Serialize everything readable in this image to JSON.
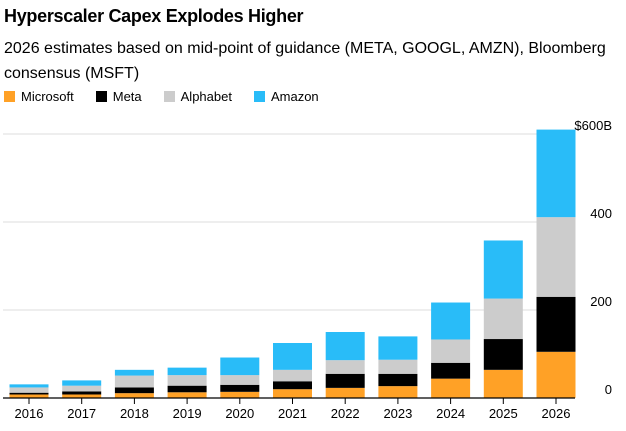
{
  "chart_data": {
    "type": "bar",
    "stacked": true,
    "title": "Hyperscaler Capex Explodes Higher",
    "subtitle": "2026 estimates based on mid-point of guidance (META, GOOGL, AMZN), Bloomberg consensus (MSFT)",
    "xlabel": "",
    "ylabel": "",
    "ylim": [
      0,
      600
    ],
    "yticks": [
      0,
      200,
      400,
      600
    ],
    "ytick_labels": [
      "0",
      "200",
      "400",
      "$600B"
    ],
    "grid": true,
    "legend_position": "top-left",
    "categories": [
      "2016",
      "2017",
      "2018",
      "2019",
      "2020",
      "2021",
      "2022",
      "2023",
      "2024",
      "2025",
      "2026"
    ],
    "series": [
      {
        "name": "Microsoft",
        "color": "#ffa126",
        "values": [
          8,
          8,
          11,
          13,
          14,
          20,
          23,
          27,
          44,
          64,
          105
        ]
      },
      {
        "name": "Meta",
        "color": "#000000",
        "values": [
          4,
          7,
          13,
          15,
          16,
          18,
          32,
          28,
          36,
          70,
          125
        ]
      },
      {
        "name": "Alphabet",
        "color": "#cccccc",
        "values": [
          12,
          13,
          27,
          24,
          22,
          26,
          31,
          32,
          53,
          92,
          181
        ]
      },
      {
        "name": "Amazon",
        "color": "#29bcf8",
        "values": [
          7,
          12,
          13,
          17,
          40,
          61,
          64,
          53,
          84,
          132,
          199
        ]
      }
    ]
  }
}
